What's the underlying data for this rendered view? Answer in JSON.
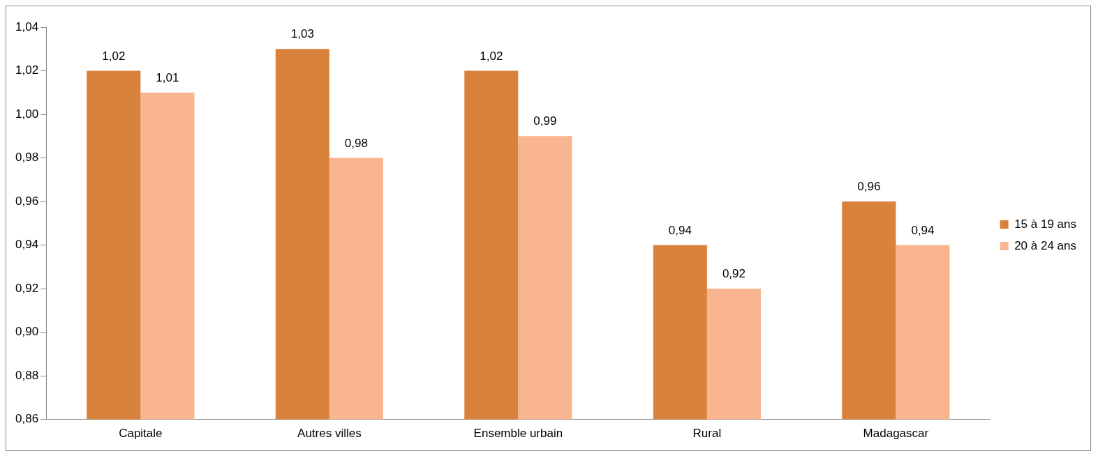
{
  "chart_data": {
    "type": "bar",
    "categories": [
      "Capitale",
      "Autres villes",
      "Ensemble urbain",
      "Rural",
      "Madagascar"
    ],
    "series": [
      {
        "name": "15 à 19 ans",
        "color": "#d9823b",
        "values": [
          1.02,
          1.03,
          1.02,
          0.94,
          0.96
        ],
        "value_labels": [
          "1,02",
          "1,03",
          "1,02",
          "0,94",
          "0,96"
        ]
      },
      {
        "name": "20 à 24 ans",
        "color": "#f8b58f",
        "values": [
          1.01,
          0.98,
          0.99,
          0.92,
          0.94
        ],
        "value_labels": [
          "1,01",
          "0,98",
          "0,99",
          "0,92",
          "0,94"
        ]
      }
    ],
    "ylim": [
      0.86,
      1.04
    ],
    "yticks": [
      {
        "value": 0.86,
        "label": "0,86"
      },
      {
        "value": 0.88,
        "label": "0,88"
      },
      {
        "value": 0.9,
        "label": "0,90"
      },
      {
        "value": 0.92,
        "label": "0,92"
      },
      {
        "value": 0.94,
        "label": "0,94"
      },
      {
        "value": 0.96,
        "label": "0,96"
      },
      {
        "value": 0.98,
        "label": "0,98"
      },
      {
        "value": 1.0,
        "label": "1,00"
      },
      {
        "value": 1.02,
        "label": "1,02"
      },
      {
        "value": 1.04,
        "label": "1,04"
      }
    ],
    "grid": false,
    "legend": "right"
  }
}
